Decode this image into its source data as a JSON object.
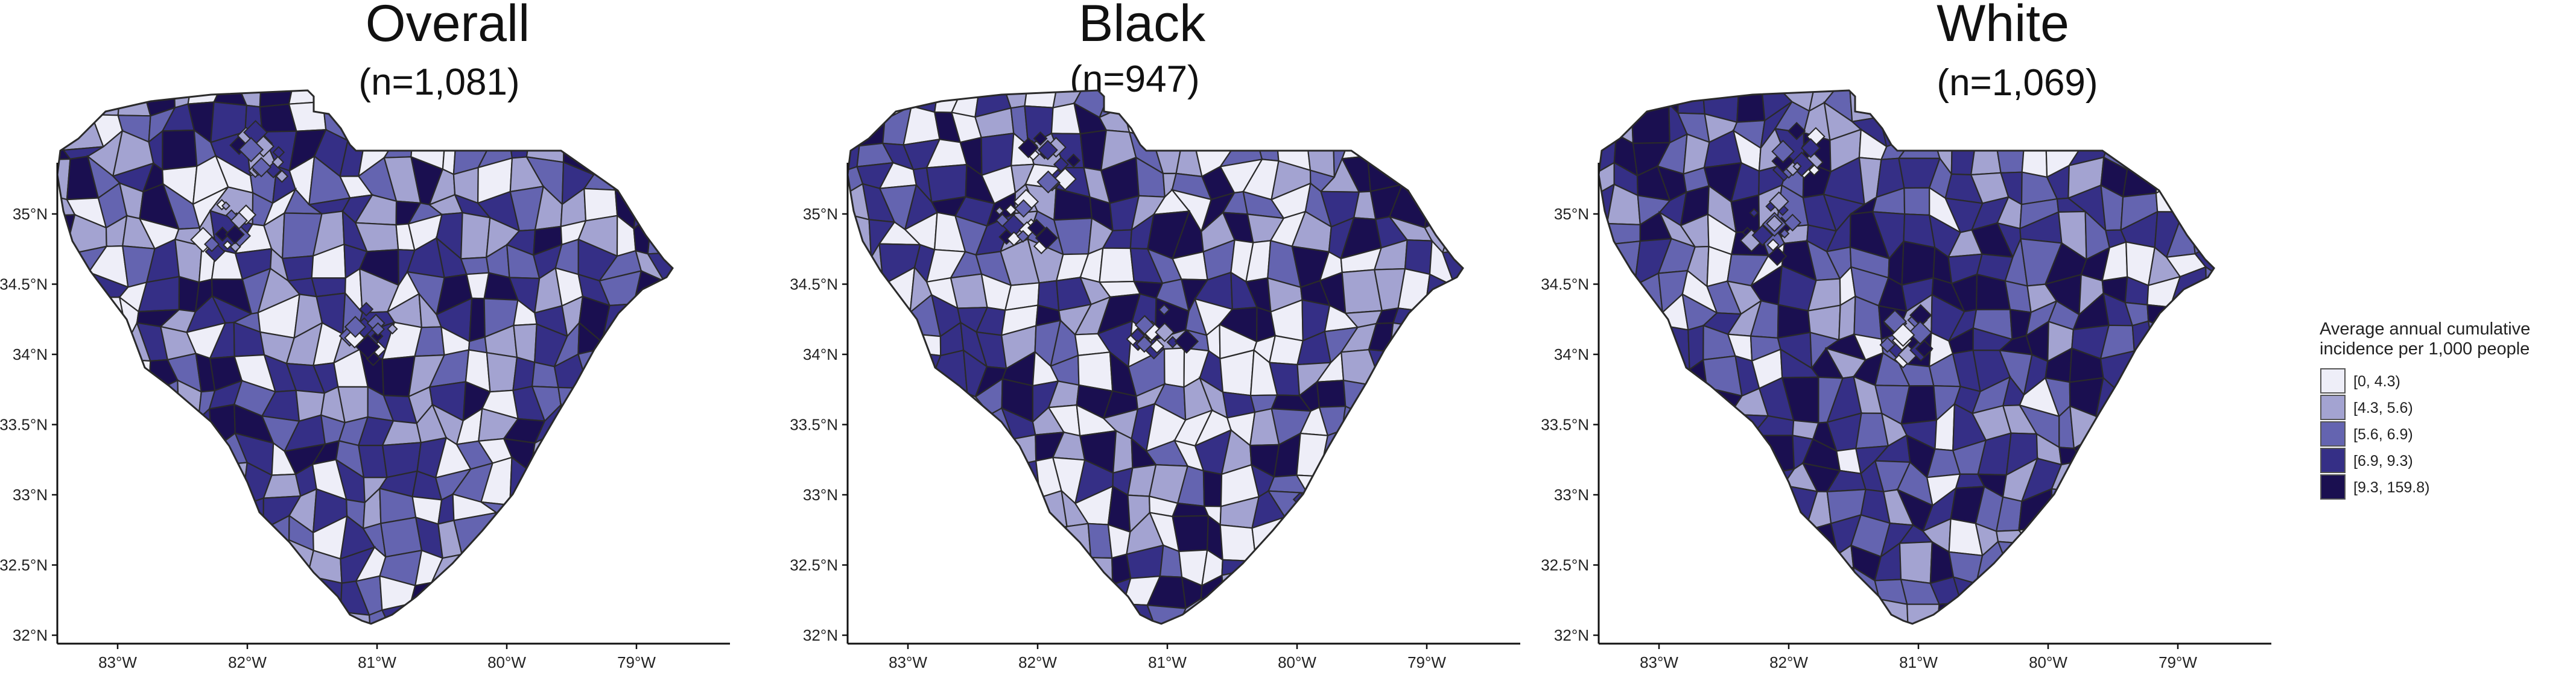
{
  "panels": [
    {
      "title": "Overall",
      "subtitle": "(n=1,081)"
    },
    {
      "title": "Black",
      "subtitle": "(n=947)"
    },
    {
      "title": "White",
      "subtitle": "(n=1,069)"
    }
  ],
  "axes": {
    "y_ticks": [
      "35°N",
      "34.5°N",
      "34°N",
      "33.5°N",
      "33°N",
      "32.5°N",
      "32°N"
    ],
    "x_ticks": [
      "83°W",
      "82°W",
      "81°W",
      "80°W",
      "79°W"
    ]
  },
  "legend": {
    "title_line1": "Average annual cumulative",
    "title_line2": "incidence per 1,000 people",
    "items": [
      {
        "label": "[0, 4.3)",
        "color": "#eeeef8"
      },
      {
        "label": "[4.3, 5.6)",
        "color": "#a3a3d1"
      },
      {
        "label": "[5.6, 6.9)",
        "color": "#6464b0"
      },
      {
        "label": "[6.9, 9.3)",
        "color": "#352f86"
      },
      {
        "label": "[9.3, 159.8)",
        "color": "#1a0f50"
      }
    ]
  },
  "colors": {
    "border": "#2a2a2a",
    "axis": "#111111",
    "background": "#ffffff"
  }
}
